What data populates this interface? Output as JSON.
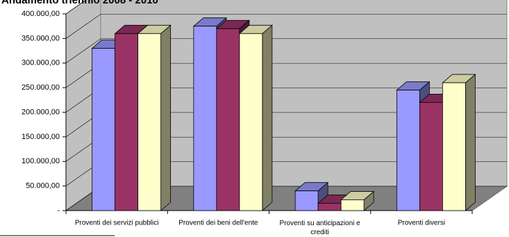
{
  "chart_data": {
    "type": "bar3d",
    "title": "Andamento triennio 2008 - 2010",
    "categories": [
      "Proventi dei servizi pubblici",
      "Proventi dei beni dell'ente",
      "Proventi su anticipazioni e crediti",
      "Proventi diversi"
    ],
    "series": [
      {
        "color": "#9999ff",
        "values": [
          330000,
          375000,
          40000,
          245000
        ]
      },
      {
        "color": "#993366",
        "values": [
          360000,
          370000,
          15000,
          220000
        ]
      },
      {
        "color": "#ffffcc",
        "values": [
          360000,
          360000,
          22000,
          260000
        ]
      }
    ],
    "ylim": [
      0,
      400000
    ],
    "yticks": [
      {
        "value": 0,
        "label": "-"
      },
      {
        "value": 50000,
        "label": "50.000,00"
      },
      {
        "value": 100000,
        "label": "100.000,00"
      },
      {
        "value": 150000,
        "label": "150.000,00"
      },
      {
        "value": 200000,
        "label": "200.000,00"
      },
      {
        "value": 250000,
        "label": "250.000,00"
      },
      {
        "value": 300000,
        "label": "300.000,00"
      },
      {
        "value": 350000,
        "label": "350.000,00"
      },
      {
        "value": 400000,
        "label": "400.000,00"
      }
    ],
    "grid": true
  }
}
